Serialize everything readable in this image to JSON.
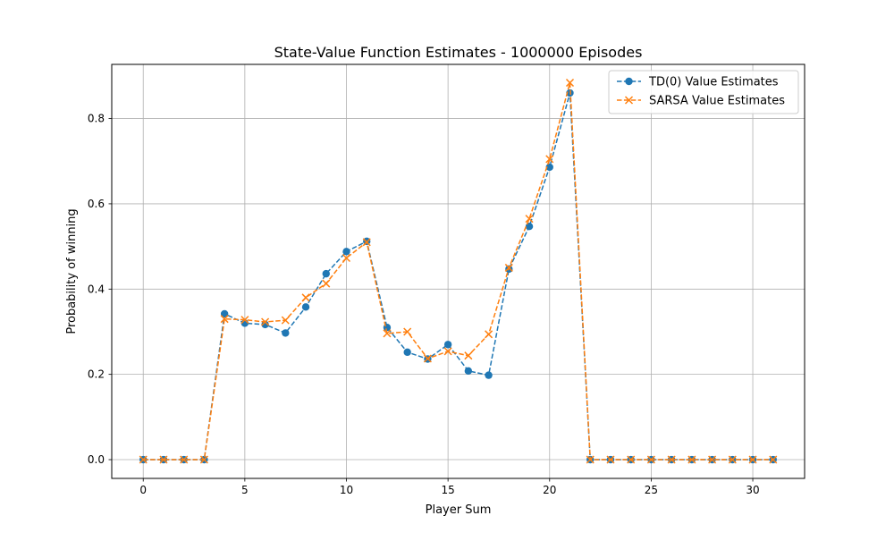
{
  "chart_data": {
    "type": "line",
    "title": "State-Value Function Estimates - 1000000 Episodes",
    "xlabel": "Player Sum",
    "ylabel": "Probability of winning",
    "xlim": [
      -1.55,
      32.55
    ],
    "ylim": [
      -0.044,
      0.927
    ],
    "xticks": [
      0,
      5,
      10,
      15,
      20,
      25,
      30
    ],
    "yticks": [
      0.0,
      0.2,
      0.4,
      0.6,
      0.8
    ],
    "grid": true,
    "legend_position": "top-right",
    "x": [
      0,
      1,
      2,
      3,
      4,
      5,
      6,
      7,
      8,
      9,
      10,
      11,
      12,
      13,
      14,
      15,
      16,
      17,
      18,
      19,
      20,
      21,
      22,
      23,
      24,
      25,
      26,
      27,
      28,
      29,
      30,
      31
    ],
    "series": [
      {
        "name": "TD(0) Value Estimates",
        "color": "#1f77b4",
        "marker": "circle",
        "linestyle": "dashed",
        "values": [
          0,
          0,
          0,
          0,
          0.342,
          0.32,
          0.317,
          0.297,
          0.358,
          0.436,
          0.488,
          0.512,
          0.31,
          0.252,
          0.236,
          0.27,
          0.208,
          0.198,
          0.447,
          0.547,
          0.686,
          0.86,
          0,
          0,
          0,
          0,
          0,
          0,
          0,
          0,
          0,
          0
        ]
      },
      {
        "name": "SARSA Value Estimates",
        "color": "#ff7f0e",
        "marker": "x",
        "linestyle": "dashed",
        "values": [
          0,
          0,
          0,
          0,
          0.33,
          0.328,
          0.323,
          0.327,
          0.38,
          0.413,
          0.473,
          0.51,
          0.296,
          0.3,
          0.237,
          0.254,
          0.244,
          0.294,
          0.45,
          0.565,
          0.705,
          0.884,
          0,
          0,
          0,
          0,
          0,
          0,
          0,
          0,
          0,
          0
        ]
      }
    ]
  }
}
